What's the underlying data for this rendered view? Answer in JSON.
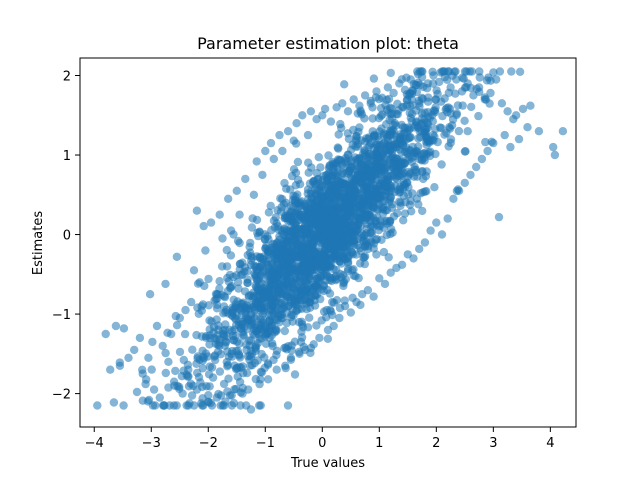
{
  "chart_data": {
    "type": "scatter",
    "title": "Parameter estimation plot: theta",
    "xlabel": "True values",
    "ylabel": "Estimates",
    "xlim": [
      -4.25,
      4.45
    ],
    "ylim": [
      -2.42,
      2.22
    ],
    "xticks": [
      -4,
      -3,
      -2,
      -1,
      0,
      1,
      2,
      3,
      4
    ],
    "xtick_labels": [
      "−4",
      "−3",
      "−2",
      "−1",
      "0",
      "1",
      "2",
      "3",
      "4"
    ],
    "yticks": [
      -2,
      -1,
      0,
      1,
      2
    ],
    "ytick_labels": [
      "−2",
      "−1",
      "0",
      "1",
      "2"
    ],
    "grid": false,
    "marker_color": "#1f77b4",
    "marker_alpha": 0.55,
    "series": [
      {
        "description_points": "dense elliptical cloud; outer points listed, core rendered as dense band",
        "points": [
          [
            -3.8,
            -1.25
          ],
          [
            -3.72,
            -1.7
          ],
          [
            -3.62,
            -1.15
          ],
          [
            -3.55,
            -1.65
          ],
          [
            -3.48,
            -1.18
          ],
          [
            -3.4,
            -1.55
          ],
          [
            -3.3,
            -1.45
          ],
          [
            -3.25,
            -1.98
          ],
          [
            -3.2,
            -1.3
          ],
          [
            -3.15,
            -1.75
          ],
          [
            -3.1,
            -1.88
          ],
          [
            -3.05,
            -1.55
          ],
          [
            -3.02,
            -0.75
          ],
          [
            -2.98,
            -1.35
          ],
          [
            -2.95,
            -1.95
          ],
          [
            -2.9,
            -1.15
          ],
          [
            -2.85,
            -2.05
          ],
          [
            -2.8,
            -1.4
          ],
          [
            -2.75,
            -0.62
          ],
          [
            -2.7,
            -1.6
          ],
          [
            -2.65,
            -1.25
          ],
          [
            -2.6,
            -1.85
          ],
          [
            -2.55,
            -0.28
          ],
          [
            -2.5,
            -1.05
          ],
          [
            -2.45,
            -2.0
          ],
          [
            -2.4,
            -0.95
          ],
          [
            -2.35,
            -1.7
          ],
          [
            -2.3,
            -0.85
          ],
          [
            -2.25,
            -0.45
          ],
          [
            -2.2,
            -1.95
          ],
          [
            -2.2,
            0.3
          ],
          [
            -2.15,
            -0.6
          ],
          [
            -2.05,
            -0.2
          ],
          [
            -2.0,
            -2.02
          ],
          [
            -1.95,
            0.15
          ],
          [
            -1.85,
            -2.05
          ],
          [
            -1.8,
            0.25
          ],
          [
            -1.75,
            -0.05
          ],
          [
            -1.7,
            -2.1
          ],
          [
            -1.65,
            0.45
          ],
          [
            -1.6,
            0.05
          ],
          [
            -1.55,
            -2.12
          ],
          [
            -1.5,
            0.55
          ],
          [
            -1.45,
            0.25
          ],
          [
            -1.4,
            -2.0
          ],
          [
            -1.35,
            0.7
          ],
          [
            -1.3,
            -1.95
          ],
          [
            -1.25,
            -2.2
          ],
          [
            -1.2,
            0.5
          ],
          [
            -1.15,
            0.92
          ],
          [
            -1.1,
            -1.88
          ],
          [
            -1.05,
            0.75
          ],
          [
            -1.0,
            1.05
          ],
          [
            -0.95,
            -1.82
          ],
          [
            -0.9,
            1.15
          ],
          [
            -0.85,
            0.95
          ],
          [
            -0.8,
            -1.7
          ],
          [
            -0.75,
            1.25
          ],
          [
            -0.7,
            1.05
          ],
          [
            -0.65,
            -1.65
          ],
          [
            -0.6,
            1.3
          ],
          [
            -0.55,
            -1.55
          ],
          [
            -0.5,
            1.18
          ],
          [
            -0.45,
            1.4
          ],
          [
            -0.4,
            -1.5
          ],
          [
            -0.35,
            1.5
          ],
          [
            -0.3,
            -1.45
          ],
          [
            -0.25,
            1.25
          ],
          [
            -0.2,
            1.55
          ],
          [
            -0.15,
            -1.38
          ],
          [
            -0.1,
            1.45
          ],
          [
            -0.05,
            -1.3
          ],
          [
            0.0,
            1.5
          ],
          [
            0.05,
            1.58
          ],
          [
            0.1,
            -1.2
          ],
          [
            0.15,
            1.42
          ],
          [
            0.2,
            -1.15
          ],
          [
            0.25,
            1.6
          ],
          [
            0.3,
            -1.05
          ],
          [
            0.35,
            1.65
          ],
          [
            0.4,
            -0.9
          ],
          [
            0.45,
            1.55
          ],
          [
            0.5,
            -0.98
          ],
          [
            0.55,
            1.7
          ],
          [
            0.6,
            -0.85
          ],
          [
            0.65,
            1.62
          ],
          [
            0.7,
            -0.75
          ],
          [
            0.75,
            1.75
          ],
          [
            0.8,
            -0.7
          ],
          [
            0.85,
            1.68
          ],
          [
            0.9,
            -0.78
          ],
          [
            0.95,
            1.8
          ],
          [
            1.0,
            -0.55
          ],
          [
            1.05,
            1.72
          ],
          [
            1.1,
            -0.62
          ],
          [
            1.15,
            1.85
          ],
          [
            1.2,
            -0.48
          ],
          [
            1.25,
            1.78
          ],
          [
            1.3,
            -0.42
          ],
          [
            1.35,
            1.9
          ],
          [
            1.4,
            -0.38
          ],
          [
            1.45,
            1.82
          ],
          [
            1.5,
            -0.25
          ],
          [
            1.55,
            1.95
          ],
          [
            1.6,
            -0.3
          ],
          [
            1.65,
            1.88
          ],
          [
            1.7,
            -0.18
          ],
          [
            1.75,
            1.98
          ],
          [
            1.8,
            -0.1
          ],
          [
            1.85,
            1.9
          ],
          [
            1.9,
            0.05
          ],
          [
            1.95,
            2.0
          ],
          [
            2.0,
            0.15
          ],
          [
            2.05,
            1.92
          ],
          [
            2.1,
            0.0
          ],
          [
            2.15,
            1.98
          ],
          [
            2.2,
            0.2
          ],
          [
            2.25,
            1.85
          ],
          [
            2.3,
            0.45
          ],
          [
            2.35,
            1.95
          ],
          [
            2.4,
            0.55
          ],
          [
            2.45,
            1.8
          ],
          [
            2.5,
            0.65
          ],
          [
            2.55,
            1.9
          ],
          [
            2.6,
            0.75
          ],
          [
            2.65,
            1.75
          ],
          [
            2.7,
            0.85
          ],
          [
            2.75,
            1.85
          ],
          [
            2.8,
            0.95
          ],
          [
            2.85,
            1.7
          ],
          [
            2.9,
            1.05
          ],
          [
            2.95,
            1.78
          ],
          [
            3.0,
            1.15
          ],
          [
            3.05,
            1.95
          ],
          [
            3.1,
            0.22
          ],
          [
            3.15,
            1.65
          ],
          [
            3.2,
            1.25
          ],
          [
            3.25,
            1.55
          ],
          [
            3.3,
            1.1
          ],
          [
            3.35,
            1.45
          ],
          [
            3.4,
            1.5
          ],
          [
            3.45,
            1.2
          ],
          [
            3.52,
            1.58
          ],
          [
            3.6,
            1.35
          ],
          [
            3.65,
            1.62
          ],
          [
            3.8,
            1.3
          ],
          [
            4.05,
            1.1
          ],
          [
            4.08,
            1.0
          ],
          [
            4.22,
            1.3
          ]
        ]
      }
    ]
  }
}
